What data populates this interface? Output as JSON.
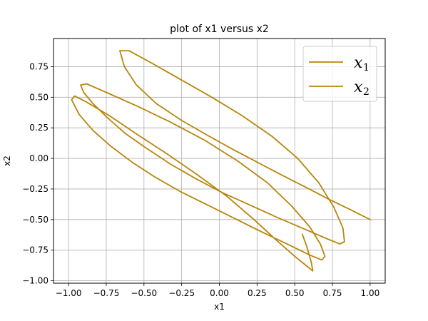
{
  "chart_data": {
    "type": "line",
    "title": "plot of x1 versus x2",
    "xlabel": "x1",
    "ylabel": "x2",
    "xlim": [
      -1.1,
      1.1
    ],
    "ylim": [
      -1.02,
      0.98
    ],
    "x_ticks": [
      -1.0,
      -0.75,
      -0.5,
      -0.25,
      0.0,
      0.25,
      0.5,
      0.75,
      1.0
    ],
    "x_tick_labels": [
      "−1.00",
      "−0.75",
      "−0.50",
      "−0.25",
      "0.00",
      "0.25",
      "0.50",
      "0.75",
      "1.00"
    ],
    "y_ticks": [
      0.75,
      0.5,
      0.25,
      0.0,
      -0.25,
      -0.5,
      -0.75,
      -1.0
    ],
    "y_tick_labels": [
      "0.75",
      "0.50",
      "0.25",
      "0.00",
      "−0.25",
      "−0.50",
      "−0.75",
      "−1.00"
    ],
    "grid": true,
    "legend_position": "top-right",
    "legend": [
      {
        "base": "x",
        "sub": "1"
      },
      {
        "base": "x",
        "sub": "2"
      }
    ],
    "line_color": "#b8860b",
    "series": [
      {
        "x": [
          1.0,
          0.87,
          0.72,
          0.58,
          0.42,
          0.25,
          0.08,
          -0.08,
          -0.25,
          -0.42,
          -0.55,
          -0.63,
          -0.66,
          -0.6,
          -0.45,
          -0.25,
          -0.05,
          0.15,
          0.35,
          0.52,
          0.66,
          0.76,
          0.82,
          0.83,
          0.8,
          0.7,
          0.55,
          0.38,
          0.2,
          0.02,
          -0.15,
          -0.32,
          -0.48,
          -0.62,
          -0.74,
          -0.84,
          -0.9,
          -0.92,
          -0.88,
          -0.75,
          -0.55,
          -0.33,
          -0.1,
          0.12,
          0.32,
          0.48,
          0.6,
          0.67,
          0.7,
          0.68,
          0.6,
          0.45,
          0.28,
          0.1,
          -0.08,
          -0.26,
          -0.43,
          -0.58,
          -0.72,
          -0.84,
          -0.93,
          -0.98,
          -0.96,
          -0.88,
          -0.73,
          -0.55,
          -0.35,
          -0.15,
          0.05,
          0.23,
          0.38,
          0.5,
          0.58,
          0.62,
          0.61,
          0.58,
          0.55
        ],
        "y": [
          -0.5,
          -0.42,
          -0.33,
          -0.24,
          -0.14,
          -0.03,
          0.08,
          0.19,
          0.31,
          0.45,
          0.6,
          0.75,
          0.88,
          0.88,
          0.78,
          0.64,
          0.5,
          0.35,
          0.18,
          0.0,
          -0.2,
          -0.4,
          -0.57,
          -0.68,
          -0.7,
          -0.65,
          -0.57,
          -0.48,
          -0.38,
          -0.28,
          -0.17,
          -0.05,
          0.08,
          0.2,
          0.33,
          0.45,
          0.54,
          0.6,
          0.61,
          0.54,
          0.43,
          0.3,
          0.15,
          -0.02,
          -0.2,
          -0.39,
          -0.56,
          -0.7,
          -0.8,
          -0.83,
          -0.79,
          -0.7,
          -0.6,
          -0.49,
          -0.38,
          -0.27,
          -0.15,
          -0.03,
          0.1,
          0.23,
          0.36,
          0.48,
          0.51,
          0.46,
          0.35,
          0.2,
          0.04,
          -0.13,
          -0.31,
          -0.5,
          -0.67,
          -0.8,
          -0.88,
          -0.92,
          -0.85,
          -0.72,
          -0.62
        ]
      }
    ]
  }
}
